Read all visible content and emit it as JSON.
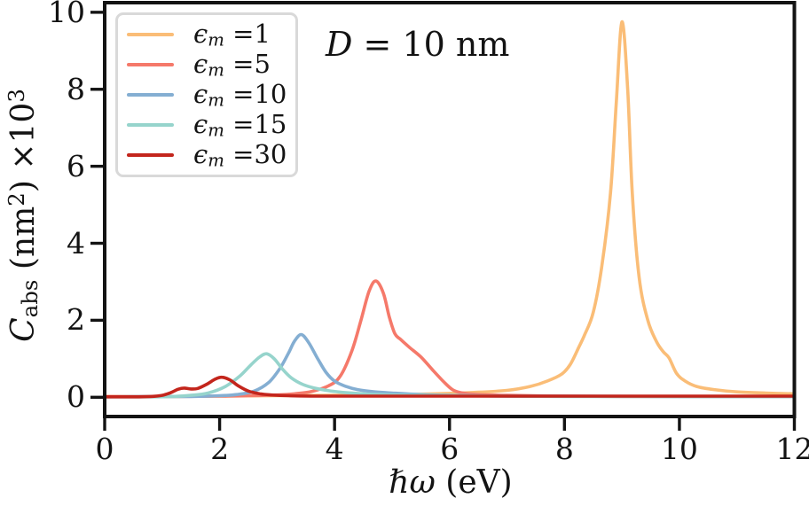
{
  "figure": {
    "background": "#ffffff",
    "axis_color": "#131313",
    "annotation_parts": [
      {
        "t": "D",
        "s": "i"
      },
      {
        "t": " = 10 nm",
        "s": "n"
      }
    ],
    "xlabel_parts": [
      {
        "t": "ℏω",
        "s": "i"
      },
      {
        "t": " (eV)",
        "s": "n"
      }
    ],
    "ylabel_parts": [
      {
        "t": "C",
        "s": "i"
      },
      {
        "t": "abs",
        "s": "sub"
      },
      {
        "t": " (nm",
        "s": "n"
      },
      {
        "t": "2",
        "s": "sup"
      },
      {
        "t": ") ×10",
        "s": "n"
      },
      {
        "t": "3",
        "s": "sup"
      }
    ]
  },
  "chart_data": {
    "type": "line",
    "title": "",
    "annotation": "D = 10 nm",
    "xlabel": "ℏω (eV)",
    "ylabel": "C_abs (nm^2) ×10^3",
    "xlim": [
      0,
      12
    ],
    "ylim": [
      -0.5,
      10.25
    ],
    "xticks": [
      0,
      2,
      4,
      6,
      8,
      10,
      12
    ],
    "yticks": [
      0,
      2,
      4,
      6,
      8,
      10
    ],
    "grid": false,
    "legend_position": "upper left",
    "series": [
      {
        "name": "ϵ_m = 1",
        "color": "#FABD77",
        "peak": {
          "x": 9.0,
          "y": 9.75
        },
        "label_parts": [
          {
            "t": "ϵ",
            "s": "i"
          },
          {
            "t": "m",
            "s": "isub"
          },
          {
            "t": " =1",
            "s": "n"
          }
        ],
        "x": [
          0,
          1,
          2,
          3,
          4,
          5,
          5.5,
          6,
          6.5,
          7,
          7.4,
          7.7,
          7.95,
          8.1,
          8.25,
          8.35,
          8.5,
          8.65,
          8.8,
          8.9,
          9.0,
          9.1,
          9.18,
          9.3,
          9.45,
          9.6,
          9.72,
          9.82,
          9.95,
          10.1,
          10.3,
          10.6,
          11,
          11.5,
          12
        ],
        "y": [
          0.02,
          0.02,
          0.03,
          0.04,
          0.05,
          0.07,
          0.08,
          0.1,
          0.13,
          0.18,
          0.28,
          0.42,
          0.6,
          0.85,
          1.3,
          1.62,
          2.2,
          3.4,
          5.3,
          7.6,
          9.75,
          8.0,
          5.3,
          3.1,
          2.0,
          1.45,
          1.18,
          1.02,
          0.62,
          0.42,
          0.28,
          0.2,
          0.14,
          0.11,
          0.09
        ]
      },
      {
        "name": "ϵ_m = 5",
        "color": "#F5796A",
        "peak": {
          "x": 4.72,
          "y": 3.0
        },
        "label_parts": [
          {
            "t": "ϵ",
            "s": "i"
          },
          {
            "t": "m",
            "s": "isub"
          },
          {
            "t": " =5",
            "s": "n"
          }
        ],
        "x": [
          0,
          1,
          2,
          2.5,
          3,
          3.3,
          3.6,
          3.9,
          4.1,
          4.3,
          4.45,
          4.6,
          4.72,
          4.85,
          4.95,
          5.05,
          5.15,
          5.3,
          5.5,
          5.7,
          5.9,
          6.05,
          6.2,
          6.5,
          7,
          8,
          9,
          10,
          11,
          12
        ],
        "y": [
          0.02,
          0.02,
          0.03,
          0.04,
          0.06,
          0.09,
          0.15,
          0.3,
          0.55,
          1.2,
          1.95,
          2.75,
          3.02,
          2.7,
          2.1,
          1.65,
          1.5,
          1.3,
          1.05,
          0.72,
          0.4,
          0.2,
          0.12,
          0.07,
          0.05,
          0.03,
          0.02,
          0.02,
          0.02,
          0.02
        ]
      },
      {
        "name": "ϵ_m = 10",
        "color": "#84AED2",
        "peak": {
          "x": 3.42,
          "y": 1.63
        },
        "label_parts": [
          {
            "t": "ϵ",
            "s": "i"
          },
          {
            "t": "m",
            "s": "isub"
          },
          {
            "t": " =10",
            "s": "n"
          }
        ],
        "x": [
          0,
          1,
          1.5,
          2,
          2.3,
          2.6,
          2.85,
          3.05,
          3.2,
          3.3,
          3.42,
          3.55,
          3.7,
          3.85,
          4.0,
          4.2,
          4.4,
          4.7,
          5.0,
          5.5,
          6,
          7,
          8,
          10,
          12
        ],
        "y": [
          0.01,
          0.02,
          0.02,
          0.04,
          0.07,
          0.16,
          0.38,
          0.75,
          1.15,
          1.45,
          1.63,
          1.42,
          1.02,
          0.65,
          0.42,
          0.28,
          0.2,
          0.14,
          0.11,
          0.07,
          0.05,
          0.03,
          0.03,
          0.02,
          0.02
        ]
      },
      {
        "name": "ϵ_m = 15",
        "color": "#96D4CC",
        "peak": {
          "x": 2.82,
          "y": 1.13
        },
        "label_parts": [
          {
            "t": "ϵ",
            "s": "i"
          },
          {
            "t": "m",
            "s": "isub"
          },
          {
            "t": " =15",
            "s": "n"
          }
        ],
        "x": [
          0,
          0.8,
          1.2,
          1.5,
          1.8,
          2.1,
          2.35,
          2.55,
          2.7,
          2.82,
          2.95,
          3.1,
          3.25,
          3.45,
          3.65,
          3.9,
          4.2,
          4.6,
          5.0,
          5.5,
          6,
          7,
          8,
          10,
          12
        ],
        "y": [
          0.01,
          0.01,
          0.02,
          0.05,
          0.11,
          0.28,
          0.55,
          0.85,
          1.05,
          1.13,
          1.0,
          0.72,
          0.5,
          0.33,
          0.24,
          0.17,
          0.12,
          0.08,
          0.06,
          0.05,
          0.04,
          0.03,
          0.02,
          0.02,
          0.02
        ]
      },
      {
        "name": "ϵ_m = 30",
        "color": "#C3251C",
        "peak": {
          "x": 2.04,
          "y": 0.52
        },
        "label_parts": [
          {
            "t": "ϵ",
            "s": "i"
          },
          {
            "t": "m",
            "s": "isub"
          },
          {
            "t": " =30",
            "s": "n"
          }
        ],
        "x": [
          0,
          0.5,
          0.8,
          1.0,
          1.15,
          1.28,
          1.38,
          1.5,
          1.62,
          1.78,
          1.92,
          2.04,
          2.18,
          2.32,
          2.5,
          2.7,
          2.9,
          3.2,
          3.6,
          4,
          5,
          6,
          7,
          8,
          9,
          10,
          11,
          12
        ],
        "y": [
          0.01,
          0.01,
          0.02,
          0.05,
          0.12,
          0.21,
          0.24,
          0.215,
          0.23,
          0.34,
          0.47,
          0.52,
          0.45,
          0.3,
          0.16,
          0.09,
          0.06,
          0.04,
          0.03,
          0.03,
          0.03,
          0.03,
          0.03,
          0.03,
          0.03,
          0.03,
          0.03,
          0.03
        ]
      }
    ]
  }
}
